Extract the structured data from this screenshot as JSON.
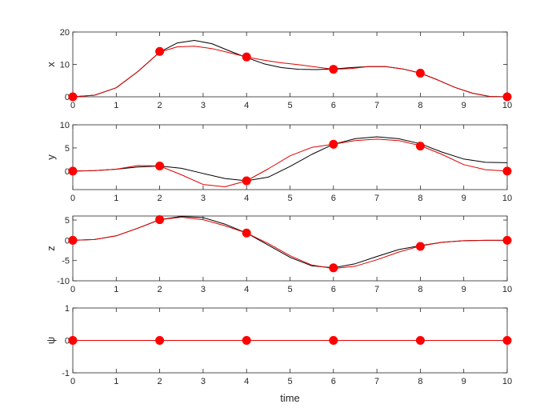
{
  "chart_data": [
    {
      "type": "line",
      "ylabel": "x",
      "xlim": [
        0,
        10
      ],
      "ylim": [
        0,
        20
      ],
      "xticks": [
        "0",
        "1",
        "2",
        "3",
        "4",
        "5",
        "6",
        "7",
        "8",
        "9",
        "10"
      ],
      "yticks": [
        "0",
        "10",
        "20"
      ],
      "series": [
        {
          "color": "#000000",
          "x": [
            0,
            0.5,
            1,
            1.5,
            2,
            2.4,
            2.8,
            3.2,
            3.6,
            4,
            4.4,
            4.8,
            5.2,
            5.6,
            6,
            6.4,
            6.8,
            7.2,
            7.6,
            8,
            8.4,
            8.8,
            9.2,
            9.6,
            10
          ],
          "y": [
            0,
            0.5,
            2.8,
            7.8,
            13.8,
            16.6,
            17.4,
            16.4,
            14.2,
            12.1,
            10.2,
            9,
            8.5,
            8.4,
            8.6,
            9,
            9.3,
            9.3,
            8.6,
            7.3,
            5.2,
            2.9,
            1.1,
            0.1,
            0
          ]
        },
        {
          "color": "#e00000",
          "x": [
            0,
            0.5,
            1,
            1.5,
            2,
            2.4,
            2.8,
            3.2,
            3.6,
            4,
            4.4,
            4.8,
            5.2,
            5.6,
            6,
            6.4,
            6.8,
            7.2,
            7.6,
            8,
            8.4,
            8.8,
            9.2,
            9.6,
            10
          ],
          "y": [
            0,
            0.5,
            2.8,
            7.8,
            13.8,
            15.4,
            15.6,
            14.9,
            13.6,
            12.3,
            11.3,
            10.5,
            9.9,
            9.2,
            8.5,
            8.7,
            9.3,
            9.3,
            8.6,
            7.3,
            5.2,
            2.9,
            1.1,
            0.1,
            0
          ]
        }
      ],
      "markers": {
        "color": "#ff0000",
        "x": [
          0,
          2,
          4,
          6,
          8,
          10
        ],
        "y": [
          0,
          14,
          12.3,
          8.5,
          7.3,
          0
        ]
      }
    },
    {
      "type": "line",
      "ylabel": "y",
      "xlim": [
        0,
        10
      ],
      "ylim": [
        -4,
        10
      ],
      "xticks": [
        "0",
        "1",
        "2",
        "3",
        "4",
        "5",
        "6",
        "7",
        "8",
        "9",
        "10"
      ],
      "yticks": [
        "0",
        "5",
        "10"
      ],
      "series": [
        {
          "color": "#000000",
          "x": [
            0,
            0.5,
            1,
            1.5,
            2,
            2.5,
            3,
            3.5,
            4,
            4.5,
            5,
            5.5,
            6,
            6.5,
            7,
            7.5,
            8,
            8.5,
            9,
            9.5,
            10
          ],
          "y": [
            0,
            0.1,
            0.4,
            0.9,
            1.1,
            0.6,
            -0.5,
            -1.6,
            -2.1,
            -1.3,
            1,
            3.6,
            5.8,
            7,
            7.4,
            7,
            5.9,
            4.1,
            2.6,
            1.9,
            1.8
          ]
        },
        {
          "color": "#e00000",
          "x": [
            0,
            0.5,
            1,
            1.5,
            2,
            2.5,
            3,
            3.5,
            4,
            4.5,
            5,
            5.5,
            6,
            6.5,
            7,
            7.5,
            8,
            8.5,
            9,
            9.5,
            10
          ],
          "y": [
            0,
            0.1,
            0.4,
            1.2,
            1.1,
            -0.8,
            -2.9,
            -3.4,
            -2.1,
            0.5,
            3.3,
            5.1,
            5.8,
            6.6,
            6.9,
            6.6,
            5.5,
            3.6,
            1.4,
            0.3,
            0
          ]
        }
      ],
      "markers": {
        "color": "#ff0000",
        "x": [
          0,
          2,
          4,
          6,
          8,
          10
        ],
        "y": [
          0,
          1.1,
          -2.1,
          5.8,
          5.4,
          0
        ]
      }
    },
    {
      "type": "line",
      "ylabel": "z",
      "xlim": [
        0,
        10
      ],
      "ylim": [
        -10,
        6
      ],
      "xticks": [
        "0",
        "1",
        "2",
        "3",
        "4",
        "5",
        "6",
        "7",
        "8",
        "9",
        "10"
      ],
      "yticks": [
        "-10",
        "-5",
        "0",
        "5"
      ],
      "series": [
        {
          "color": "#000000",
          "x": [
            0,
            0.5,
            1,
            1.5,
            2,
            2.5,
            3,
            3.5,
            4,
            4.5,
            5,
            5.5,
            6,
            6.5,
            7,
            7.5,
            8,
            8.5,
            9,
            9.5,
            10
          ],
          "y": [
            0,
            0.2,
            1.1,
            3,
            5.1,
            5.9,
            5.6,
            4,
            1.8,
            -1.2,
            -4.2,
            -6.3,
            -6.8,
            -5.8,
            -4,
            -2.3,
            -1.3,
            -0.5,
            -0.1,
            0,
            0
          ]
        },
        {
          "color": "#e00000",
          "x": [
            0,
            0.5,
            1,
            1.5,
            2,
            2.5,
            3,
            3.5,
            4,
            4.5,
            5,
            5.5,
            6,
            6.5,
            7,
            7.5,
            8,
            8.5,
            9,
            9.5,
            10
          ],
          "y": [
            0,
            0.2,
            1.1,
            3,
            5.1,
            5.7,
            5.1,
            3.6,
            1.8,
            -0.8,
            -3.8,
            -6.1,
            -7,
            -6.4,
            -4.8,
            -2.9,
            -1.4,
            -0.5,
            -0.1,
            0,
            0
          ]
        }
      ],
      "markers": {
        "color": "#ff0000",
        "x": [
          0,
          2,
          4,
          6,
          8,
          10
        ],
        "y": [
          0,
          5.1,
          1.8,
          -6.8,
          -1.5,
          0
        ]
      }
    },
    {
      "type": "line",
      "ylabel": "ψ",
      "xlabel": "time",
      "xlim": [
        0,
        10
      ],
      "ylim": [
        -1,
        1
      ],
      "xticks": [
        "0",
        "1",
        "2",
        "3",
        "4",
        "5",
        "6",
        "7",
        "8",
        "9",
        "10"
      ],
      "yticks": [
        "-1",
        "0",
        "1"
      ],
      "series": [
        {
          "color": "#000000",
          "x": [
            0,
            10
          ],
          "y": [
            0,
            0
          ]
        },
        {
          "color": "#e00000",
          "x": [
            0,
            10
          ],
          "y": [
            0,
            0
          ]
        }
      ],
      "markers": {
        "color": "#ff0000",
        "x": [
          0,
          2,
          4,
          6,
          8,
          10
        ],
        "y": [
          0,
          0,
          0,
          0,
          0,
          0
        ]
      }
    }
  ]
}
